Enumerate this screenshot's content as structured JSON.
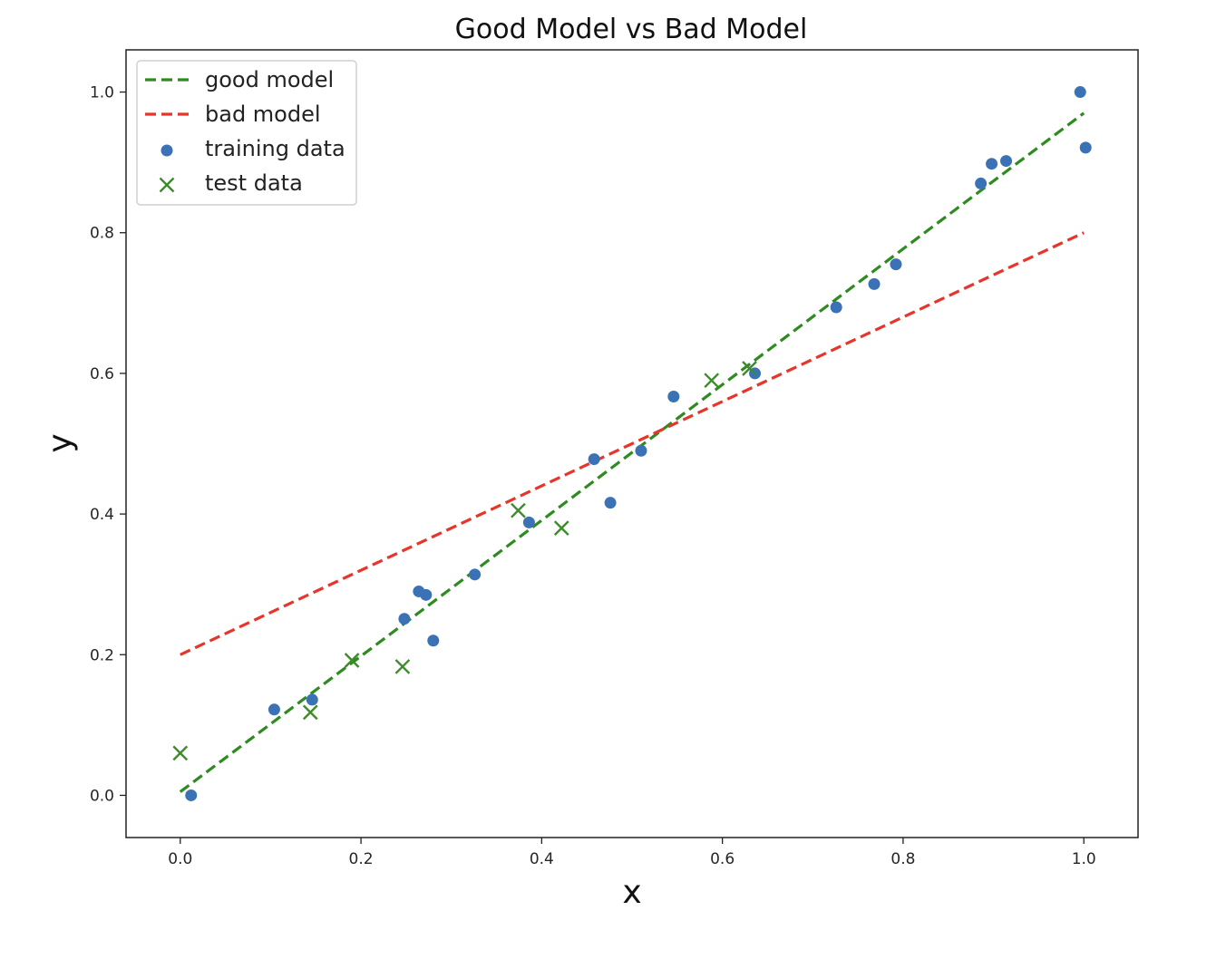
{
  "chart_data": {
    "type": "scatter",
    "title": "Good Model vs Bad Model",
    "xlabel": "x",
    "ylabel": "y",
    "xlim": [
      -0.06,
      1.06
    ],
    "ylim": [
      -0.06,
      1.06
    ],
    "xticks": [
      0.0,
      0.2,
      0.4,
      0.6,
      0.8,
      1.0
    ],
    "yticks": [
      0.0,
      0.2,
      0.4,
      0.6,
      0.8,
      1.0
    ],
    "xtick_labels": [
      "0.0",
      "0.2",
      "0.4",
      "0.6",
      "0.8",
      "1.0"
    ],
    "ytick_labels": [
      "0.0",
      "0.2",
      "0.4",
      "0.6",
      "0.8",
      "1.0"
    ],
    "grid": false,
    "legend_position": "top-left",
    "legend": [
      {
        "label": "good model",
        "kind": "dashed-line",
        "color": "#2e8b1f"
      },
      {
        "label": "bad model",
        "kind": "dashed-line",
        "color": "#e8352b"
      },
      {
        "label": "training data",
        "kind": "circle",
        "color": "#3a72b5"
      },
      {
        "label": "test data",
        "kind": "x-marker",
        "color": "#3d8b2a"
      }
    ],
    "lines": [
      {
        "name": "good model",
        "color": "#2e8b1f",
        "style": "dashed",
        "x": [
          0.0,
          1.0
        ],
        "y": [
          0.005,
          0.97
        ]
      },
      {
        "name": "bad model",
        "color": "#e8352b",
        "style": "dashed",
        "x": [
          0.0,
          1.0
        ],
        "y": [
          0.2,
          0.8
        ]
      }
    ],
    "series": [
      {
        "name": "training data",
        "marker": "circle",
        "color": "#3a72b5",
        "points": [
          [
            0.012,
            0.0
          ],
          [
            0.104,
            0.122
          ],
          [
            0.146,
            0.136
          ],
          [
            0.248,
            0.251
          ],
          [
            0.264,
            0.29
          ],
          [
            0.272,
            0.285
          ],
          [
            0.28,
            0.22
          ],
          [
            0.326,
            0.314
          ],
          [
            0.386,
            0.388
          ],
          [
            0.458,
            0.478
          ],
          [
            0.476,
            0.416
          ],
          [
            0.51,
            0.49
          ],
          [
            0.546,
            0.567
          ],
          [
            0.636,
            0.6
          ],
          [
            0.726,
            0.694
          ],
          [
            0.768,
            0.727
          ],
          [
            0.792,
            0.755
          ],
          [
            0.886,
            0.87
          ],
          [
            0.898,
            0.898
          ],
          [
            0.914,
            0.902
          ],
          [
            0.996,
            1.0
          ],
          [
            1.002,
            0.921
          ]
        ]
      },
      {
        "name": "test data",
        "marker": "x",
        "color": "#3d8b2a",
        "points": [
          [
            0.0,
            0.06
          ],
          [
            0.144,
            0.118
          ],
          [
            0.19,
            0.192
          ],
          [
            0.246,
            0.183
          ],
          [
            0.374,
            0.405
          ],
          [
            0.422,
            0.38
          ],
          [
            0.588,
            0.59
          ],
          [
            0.63,
            0.607
          ]
        ]
      }
    ]
  }
}
